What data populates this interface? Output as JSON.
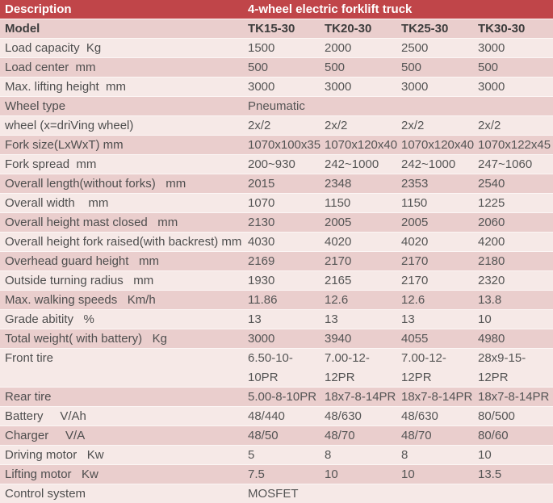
{
  "colors": {
    "header_red": "#c04549",
    "stripe_dark": "#eacecd",
    "stripe_light": "#f6e9e7",
    "header_text": "#ffffff",
    "body_text": "#4e4e4e"
  },
  "header": {
    "description_label": "Description",
    "title": "4-wheel electric forklift truck"
  },
  "rows": [
    {
      "label": "Model",
      "bold": true,
      "tall": false,
      "values": [
        "TK15-30",
        "TK20-30",
        "TK25-30",
        "TK30-30"
      ]
    },
    {
      "label": "Load capacity  Kg",
      "bold": false,
      "tall": false,
      "values": [
        "1500",
        "2000",
        "2500",
        "3000"
      ]
    },
    {
      "label": "Load center  mm",
      "bold": false,
      "tall": false,
      "values": [
        "500",
        "500",
        "500",
        "500"
      ]
    },
    {
      "label": "Max. lifting height  mm",
      "bold": false,
      "tall": false,
      "values": [
        "3000",
        "3000",
        "3000",
        "3000"
      ]
    },
    {
      "label": "Wheel type",
      "bold": false,
      "tall": false,
      "values": [
        "Pneumatic",
        "",
        "",
        ""
      ]
    },
    {
      "label": "wheel (x=driVing wheel)",
      "bold": false,
      "tall": false,
      "values": [
        "2x/2",
        "2x/2",
        "2x/2",
        "2x/2"
      ]
    },
    {
      "label": "Fork size(LxWxT) mm",
      "bold": false,
      "tall": false,
      "values": [
        "1070x100x35",
        "1070x120x40",
        "1070x120x40",
        "1070x122x45"
      ]
    },
    {
      "label": "Fork spread  mm",
      "bold": false,
      "tall": false,
      "values": [
        "200~930",
        "242~1000",
        "242~1000",
        "247~1060"
      ]
    },
    {
      "label": "Overall length(without forks)   mm",
      "bold": false,
      "tall": false,
      "values": [
        "2015",
        "2348",
        "2353",
        "2540"
      ]
    },
    {
      "label": "Overall width    mm",
      "bold": false,
      "tall": false,
      "values": [
        "1070",
        "1150",
        "1150",
        "1225"
      ]
    },
    {
      "label": "Overall height mast closed   mm",
      "bold": false,
      "tall": false,
      "values": [
        "2130",
        "2005",
        "2005",
        "2060"
      ]
    },
    {
      "label": "Overall height fork raised(with backrest) mm",
      "bold": false,
      "tall": false,
      "values": [
        "4030",
        "4020",
        "4020",
        "4200"
      ]
    },
    {
      "label": "Overhead guard height   mm",
      "bold": false,
      "tall": false,
      "values": [
        "2169",
        "2170",
        "2170",
        "2180"
      ]
    },
    {
      "label": "Outside turning radius   mm",
      "bold": false,
      "tall": false,
      "values": [
        "1930",
        "2165",
        "2170",
        "2320"
      ]
    },
    {
      "label": "Max. walking speeds   Km/h",
      "bold": false,
      "tall": false,
      "values": [
        "11.86",
        "12.6",
        "12.6",
        "13.8"
      ]
    },
    {
      "label": "Grade abitity   %",
      "bold": false,
      "tall": false,
      "values": [
        "13",
        "13",
        "13",
        "10"
      ]
    },
    {
      "label": "Total weight( with battery)   Kg",
      "bold": false,
      "tall": false,
      "values": [
        "3000",
        "3940",
        "4055",
        "4980"
      ]
    },
    {
      "label": "Front tire",
      "bold": false,
      "tall": true,
      "values": [
        "6.50-10-\n10PR",
        "7.00-12-\n12PR",
        "7.00-12-\n12PR",
        "28x9-15-\n12PR"
      ]
    },
    {
      "label": "Rear tire",
      "bold": false,
      "tall": false,
      "values": [
        "5.00-8-10PR",
        "18x7-8-14PR",
        "18x7-8-14PR",
        "18x7-8-14PR"
      ]
    },
    {
      "label": "Battery     V/Ah",
      "bold": false,
      "tall": false,
      "values": [
        "48/440",
        "48/630",
        "48/630",
        "80/500"
      ]
    },
    {
      "label": "Charger     V/A",
      "bold": false,
      "tall": false,
      "values": [
        "48/50",
        "48/70",
        "48/70",
        "80/60"
      ]
    },
    {
      "label": "Driving motor   Kw",
      "bold": false,
      "tall": false,
      "values": [
        "5",
        "8",
        "8",
        "10"
      ]
    },
    {
      "label": "Lifting motor   Kw",
      "bold": false,
      "tall": false,
      "values": [
        "7.5",
        "10",
        "10",
        "13.5"
      ]
    },
    {
      "label": "Control system",
      "bold": false,
      "tall": false,
      "values": [
        "MOSFET",
        "",
        "",
        ""
      ]
    }
  ]
}
